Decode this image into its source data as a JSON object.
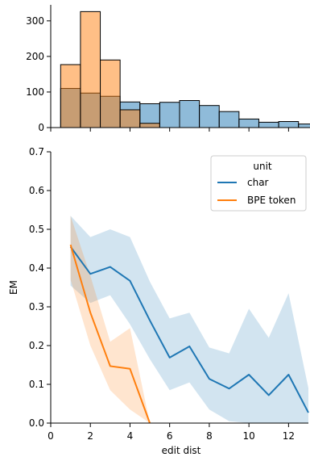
{
  "chart_data": [
    {
      "type": "histogram",
      "xlabel": "",
      "ylabel": "",
      "xlim": [
        0,
        13
      ],
      "ylim": [
        0,
        345
      ],
      "yticks": [
        0,
        100,
        200,
        300
      ],
      "xticks": [
        0,
        2,
        4,
        6,
        8,
        10,
        12
      ],
      "bin_edges": [
        0.5,
        1.5,
        2.5,
        3.5,
        4.5,
        5.5,
        6.5,
        7.5,
        8.5,
        9.5,
        10.5,
        11.5,
        12.5,
        13.5
      ],
      "series": [
        {
          "name": "char",
          "color": "#1f77b4",
          "values": [
            110,
            97,
            88,
            72,
            67,
            71,
            76,
            62,
            45,
            24,
            15,
            17,
            10
          ]
        },
        {
          "name": "BPE token",
          "color": "#ff7f0e",
          "values": [
            177,
            326,
            190,
            50,
            12,
            0,
            0,
            0,
            0,
            0,
            0,
            0,
            0
          ]
        }
      ]
    },
    {
      "type": "line",
      "xlabel": "edit dist",
      "ylabel": "EM",
      "xlim": [
        0,
        13
      ],
      "ylim": [
        0,
        0.7
      ],
      "xticks": [
        0,
        2,
        4,
        6,
        8,
        10,
        12
      ],
      "yticks": [
        0.0,
        0.1,
        0.2,
        0.3,
        0.4,
        0.5,
        0.6,
        0.7
      ],
      "legend": {
        "title": "unit",
        "placement": "top-right"
      },
      "series": [
        {
          "name": "char",
          "color": "#1f77b4",
          "x": [
            1,
            2,
            3,
            4,
            5,
            6,
            7,
            8,
            9,
            10,
            11,
            12,
            13
          ],
          "y": [
            0.455,
            0.385,
            0.403,
            0.367,
            0.265,
            0.169,
            0.198,
            0.114,
            0.089,
            0.125,
            0.072,
            0.125,
            0.027
          ],
          "lower": [
            0.355,
            0.31,
            0.33,
            0.255,
            0.165,
            0.085,
            0.105,
            0.035,
            0.005,
            0.0,
            0.0,
            0.0,
            0.0
          ],
          "upper": [
            0.535,
            0.48,
            0.5,
            0.48,
            0.365,
            0.27,
            0.285,
            0.195,
            0.18,
            0.295,
            0.22,
            0.335,
            0.09
          ]
        },
        {
          "name": "BPE token",
          "color": "#ff7f0e",
          "x": [
            1,
            2,
            3,
            4,
            5
          ],
          "y": [
            0.46,
            0.285,
            0.147,
            0.14,
            0.0
          ],
          "lower": [
            0.37,
            0.2,
            0.085,
            0.035,
            0.0
          ],
          "upper": [
            0.535,
            0.38,
            0.21,
            0.245,
            0.0
          ]
        }
      ]
    }
  ]
}
